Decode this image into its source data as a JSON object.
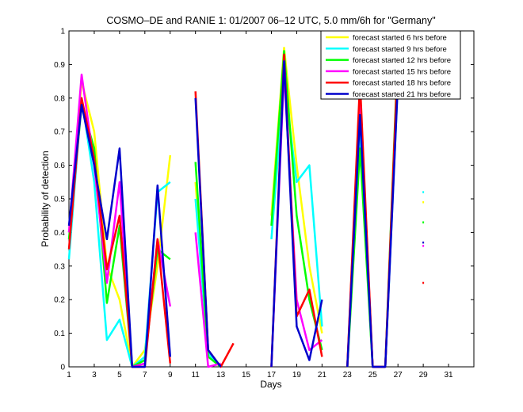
{
  "chart_data": {
    "type": "line",
    "title": "COSMO–DE and RANIE 1: 01/2007 06–12 UTC, 5.0 mm/6h for \"Germany\"",
    "xlabel": "Days",
    "ylabel": "Probability of detection",
    "xlim": [
      1,
      33
    ],
    "ylim": [
      0,
      1
    ],
    "xticks": [
      1,
      3,
      5,
      7,
      9,
      11,
      13,
      15,
      17,
      19,
      21,
      23,
      25,
      27,
      29,
      31
    ],
    "yticks": [
      0,
      0.1,
      0.2,
      0.3,
      0.4,
      0.5,
      0.6,
      0.7,
      0.8,
      0.9,
      1
    ],
    "ytick_labels": [
      "0",
      "0.1",
      "0.2",
      "0.3",
      "0.4",
      "0.5",
      "0.6",
      "0.7",
      "0.8",
      "0.9",
      "1"
    ],
    "grid": false,
    "legend_position": "top-right",
    "series": [
      {
        "name": "forecast started 6 hrs before",
        "color": "#ffff00",
        "values": [
          0.4,
          0.85,
          0.7,
          0.3,
          0.2,
          0.0,
          0.05,
          0.3,
          0.63,
          null,
          0.55,
          0.04,
          0.0,
          null,
          null,
          null,
          0.45,
          0.95,
          0.6,
          0.3,
          0.1,
          null,
          0.0,
          0.8,
          0.0,
          0.0,
          0.9,
          null,
          0.49,
          null,
          null,
          null,
          null
        ]
      },
      {
        "name": "forecast started 9 hrs before",
        "color": "#00ffff",
        "values": [
          0.32,
          0.8,
          0.55,
          0.08,
          0.14,
          0.0,
          0.03,
          0.52,
          0.55,
          null,
          0.5,
          0.04,
          0.0,
          null,
          null,
          null,
          0.38,
          0.85,
          0.55,
          0.6,
          0.12,
          null,
          0.0,
          0.7,
          0.0,
          0.0,
          0.85,
          null,
          0.52,
          null,
          null,
          null,
          null
        ]
      },
      {
        "name": "forecast started 12 hrs before",
        "color": "#00ff00",
        "values": [
          0.38,
          0.78,
          0.65,
          0.19,
          0.42,
          0.0,
          0.02,
          0.35,
          0.32,
          null,
          0.61,
          0.03,
          0.0,
          null,
          null,
          null,
          0.42,
          0.94,
          0.45,
          0.2,
          0.05,
          null,
          0.0,
          0.65,
          0.0,
          0.0,
          0.95,
          null,
          0.43,
          null,
          null,
          null,
          null
        ]
      },
      {
        "name": "forecast started 15 hrs before",
        "color": "#ff00ff",
        "values": [
          0.4,
          0.87,
          0.6,
          0.25,
          0.55,
          0.0,
          0.01,
          0.38,
          0.18,
          null,
          0.4,
          0.0,
          0.01,
          null,
          null,
          null,
          0.0,
          0.88,
          0.2,
          0.05,
          0.08,
          null,
          0.0,
          0.82,
          0.0,
          0.0,
          0.88,
          null,
          0.36,
          null,
          null,
          null,
          null
        ]
      },
      {
        "name": "forecast started 18 hrs before",
        "color": "#ff0000",
        "values": [
          0.35,
          0.8,
          0.62,
          0.29,
          0.45,
          0.0,
          0.0,
          0.38,
          0.01,
          null,
          0.82,
          0.05,
          0.0,
          0.07,
          null,
          null,
          0.0,
          0.93,
          0.15,
          0.23,
          0.03,
          null,
          0.0,
          0.85,
          0.0,
          0.0,
          0.93,
          null,
          0.25,
          null,
          null,
          null,
          null
        ]
      },
      {
        "name": "forecast started 21 hrs before",
        "color": "#0000cc",
        "values": [
          0.42,
          0.78,
          0.6,
          0.38,
          0.65,
          0.0,
          0.0,
          0.54,
          0.03,
          null,
          0.8,
          0.05,
          0.0,
          null,
          null,
          null,
          0.0,
          0.91,
          0.12,
          0.02,
          0.2,
          null,
          0.0,
          0.75,
          0.0,
          0.0,
          0.85,
          null,
          0.37,
          null,
          null,
          null,
          null
        ]
      }
    ]
  }
}
